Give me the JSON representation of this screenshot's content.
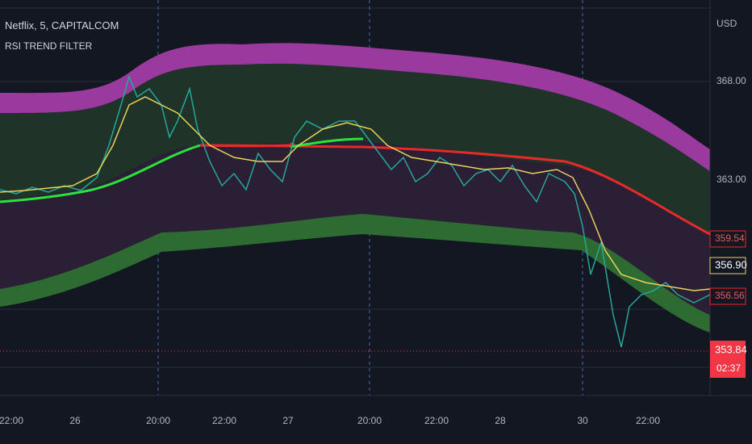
{
  "header": {
    "symbol": "Netflix, 5, CAPITALCOM",
    "indicator": "RSI TREND FILTER"
  },
  "price_axis": {
    "currency": "USD",
    "labels": [
      "368.00",
      "363.00"
    ]
  },
  "badges": {
    "upper_band": "359.54",
    "trend": "356.90",
    "lower_band": "356.56",
    "last_price": "353.84",
    "countdown": "02:37"
  },
  "time_axis": {
    "labels": [
      "22:00",
      "26",
      "20:00",
      "22:00",
      "27",
      "20:00",
      "22:00",
      "28",
      "30",
      "22:00"
    ]
  }
}
